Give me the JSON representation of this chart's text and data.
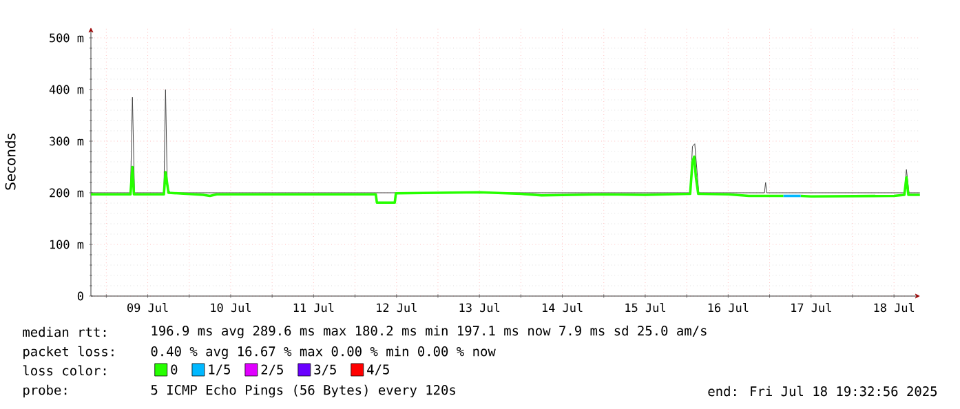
{
  "chart_data": {
    "type": "line",
    "ylabel": "Seconds",
    "xlim": [
      "2025-07-08T19:33",
      "2025-07-18T19:33"
    ],
    "xticks": [
      {
        "value": "2025-07-09T00:00",
        "label": null
      },
      {
        "value": "2025-07-09T12:00",
        "label": "09 Jul"
      },
      {
        "value": "2025-07-10T00:00",
        "label": null
      },
      {
        "value": "2025-07-10T12:00",
        "label": "10 Jul"
      },
      {
        "value": "2025-07-11T00:00",
        "label": null
      },
      {
        "value": "2025-07-11T12:00",
        "label": "11 Jul"
      },
      {
        "value": "2025-07-12T00:00",
        "label": null
      },
      {
        "value": "2025-07-12T12:00",
        "label": "12 Jul"
      },
      {
        "value": "2025-07-13T00:00",
        "label": null
      },
      {
        "value": "2025-07-13T12:00",
        "label": "13 Jul"
      },
      {
        "value": "2025-07-14T00:00",
        "label": null
      },
      {
        "value": "2025-07-14T12:00",
        "label": "14 Jul"
      },
      {
        "value": "2025-07-15T00:00",
        "label": null
      },
      {
        "value": "2025-07-15T12:00",
        "label": "15 Jul"
      },
      {
        "value": "2025-07-16T00:00",
        "label": null
      },
      {
        "value": "2025-07-16T12:00",
        "label": "16 Jul"
      },
      {
        "value": "2025-07-17T00:00",
        "label": null
      },
      {
        "value": "2025-07-17T12:00",
        "label": "17 Jul"
      },
      {
        "value": "2025-07-18T00:00",
        "label": null
      },
      {
        "value": "2025-07-18T12:00",
        "label": "18 Jul"
      }
    ],
    "ylim": [
      0,
      520
    ],
    "yticks": [
      0,
      {
        "value": 100,
        "label": "100 m"
      },
      {
        "value": 200,
        "label": "200 m"
      },
      {
        "value": 300,
        "label": "300 m"
      },
      {
        "value": 400,
        "label": "400 m"
      },
      {
        "value": 500,
        "label": "500 m"
      }
    ],
    "grid": true,
    "legend": "bottom",
    "line_style": "solid",
    "marker": "none",
    "series": [
      {
        "color": "#444444",
        "x": [
          "2025-07-08T19:33",
          "2025-07-09T07:00",
          "2025-07-09T07:34",
          "2025-07-09T08:10",
          "2025-07-09T16:40",
          "2025-07-09T17:09",
          "2025-07-09T17:40",
          "2025-07-09T18:30",
          "2025-07-16T01:00",
          "2025-07-16T01:40",
          "2025-07-16T02:20",
          "2025-07-16T03:30",
          "2025-07-16T22:30",
          "2025-07-16T22:50",
          "2025-07-16T23:10",
          "2025-07-18T15:00",
          "2025-07-18T15:36",
          "2025-07-18T16:20",
          "2025-07-18T19:30"
        ],
        "values": [
          200,
          200,
          385,
          200,
          200,
          400,
          210,
          200,
          200,
          290,
          295,
          200,
          200,
          220,
          200,
          200,
          245,
          200,
          200
        ]
      },
      {
        "name": "0",
        "color": "#26ff00",
        "x": [
          "2025-07-08T19:33",
          "2025-07-09T07:00",
          "2025-07-09T07:34",
          "2025-07-09T08:00",
          "2025-07-09T16:40",
          "2025-07-09T17:09",
          "2025-07-09T18:00",
          "2025-07-10T04:00",
          "2025-07-10T06:00",
          "2025-07-10T08:00",
          "2025-07-12T06:00",
          "2025-07-12T06:20",
          "2025-07-12T11:30",
          "2025-07-12T11:50",
          "2025-07-13T00:00",
          "2025-07-13T12:00",
          "2025-07-14T00:00",
          "2025-07-14T06:00",
          "2025-07-15T00:00",
          "2025-07-15T12:00",
          "2025-07-16T01:00",
          "2025-07-16T01:40",
          "2025-07-16T02:10",
          "2025-07-16T02:40",
          "2025-07-16T03:20",
          "2025-07-16T12:00",
          "2025-07-16T18:00",
          "2025-07-17T04:00",
          "2025-07-17T06:30",
          "2025-07-17T09:00",
          "2025-07-17T12:00",
          "2025-07-18T12:00",
          "2025-07-18T15:00",
          "2025-07-18T15:36",
          "2025-07-18T16:10",
          "2025-07-18T19:30"
        ],
        "values": [
          197,
          197,
          250,
          197,
          197,
          240,
          200,
          196,
          194,
          197,
          197,
          181,
          181,
          199,
          200,
          201,
          198,
          195,
          197,
          196,
          198,
          260,
          270,
          230,
          198,
          197,
          194,
          194,
          null,
          194,
          193,
          194,
          196,
          230,
          196,
          196
        ]
      },
      {
        "name": "1/5",
        "color": "#00b8ff",
        "x": [
          "2025-07-17T04:00",
          "2025-07-17T06:30",
          "2025-07-17T09:00"
        ],
        "values": [
          194,
          194,
          194
        ]
      },
      {
        "name": "2/5",
        "color": "#e000ff"
      },
      {
        "name": "3/5",
        "color": "#6a00ff"
      },
      {
        "name": "4/5",
        "color": "#ff0000"
      }
    ],
    "annotations": [
      "median rtt:",
      "196.9 ms avg  289.6 ms max  180.2 ms min  197.1 ms now  7.9 ms sd  25.0   am/s",
      "packet loss:",
      "0.40 % avg  16.67 % max  0.00 % min  0.00 % now",
      "loss color:",
      "probe:",
      "5 ICMP Echo Pings (56 Bytes) every 120s",
      "end: Fri Jul 18 19:32:56 2025"
    ]
  }
}
